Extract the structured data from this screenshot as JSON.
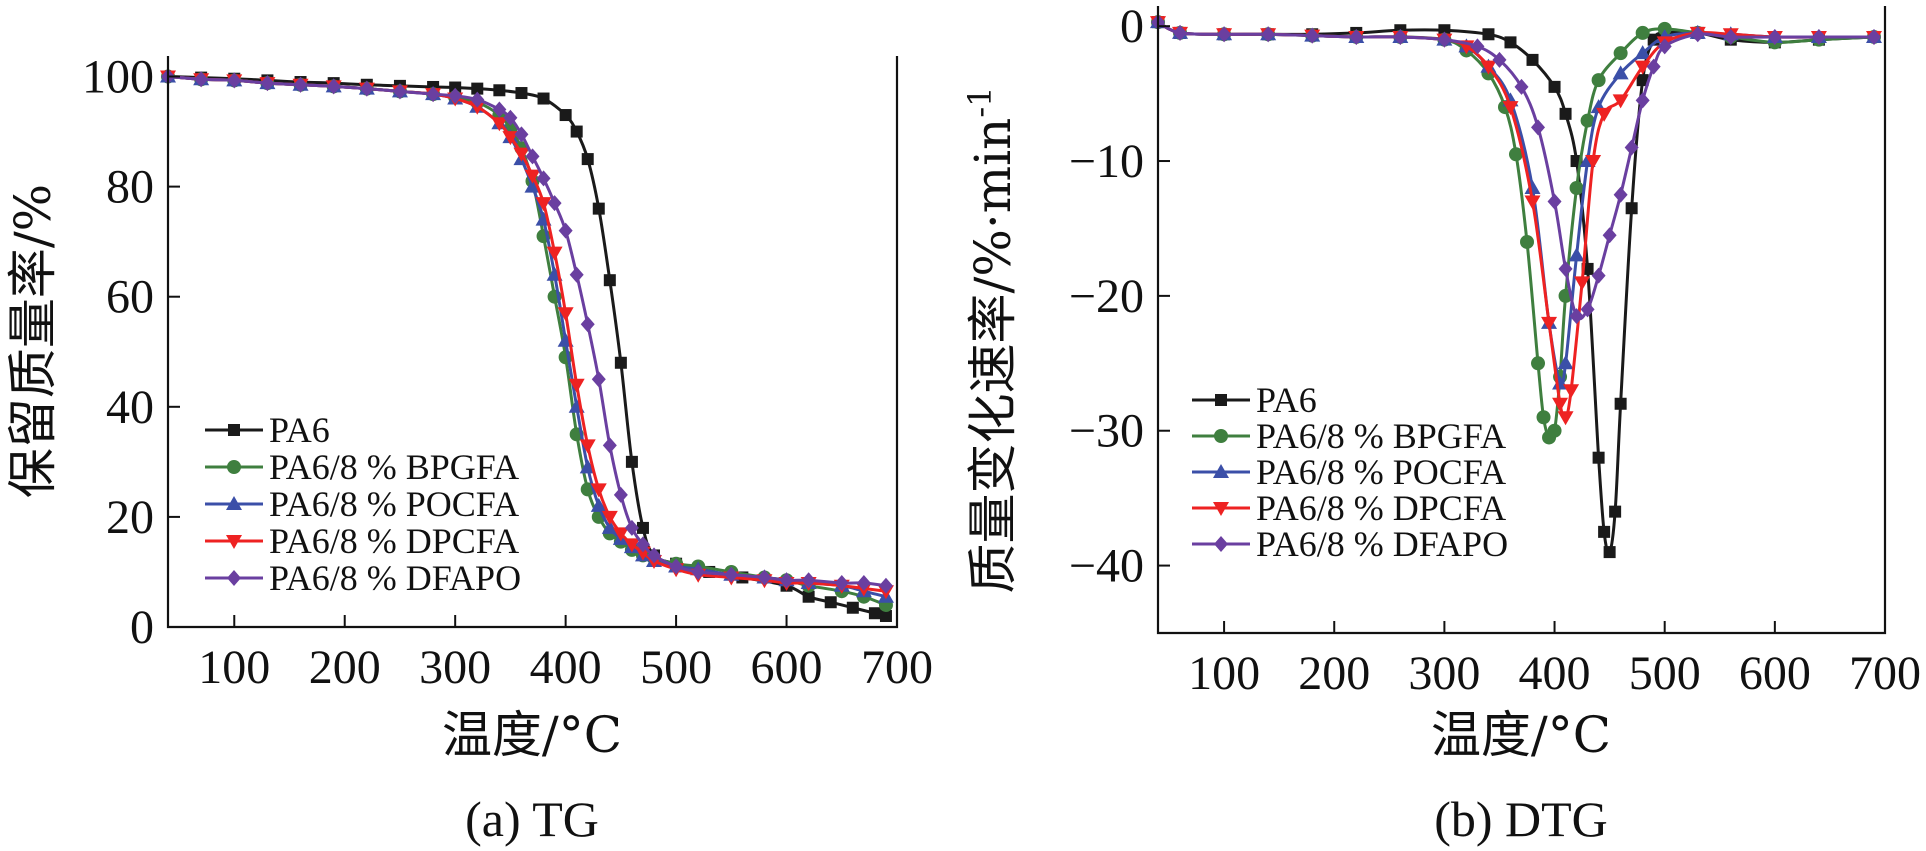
{
  "colors": {
    "PA6": "#1a1a1a",
    "BPGFA": "#3f7f3f",
    "POCFA": "#3b4fa8",
    "DPCFA": "#ee2222",
    "DFAPO": "#6a3fa0"
  },
  "chart_data": [
    {
      "type": "line",
      "caption": "(a) TG",
      "xlabel": "温度/°C",
      "ylabel": "保留质量率/%",
      "xlim": [
        40,
        700
      ],
      "ylim": [
        0,
        103
      ],
      "xticks": [
        100,
        200,
        300,
        400,
        500,
        600,
        700
      ],
      "yticks": [
        0,
        20,
        40,
        60,
        80,
        100
      ],
      "legend_position": "lower-left",
      "grid": false,
      "series": [
        {
          "name": "PA6",
          "key": "PA6",
          "marker": "square",
          "x": [
            40,
            70,
            100,
            130,
            160,
            190,
            220,
            250,
            280,
            300,
            320,
            340,
            360,
            380,
            400,
            410,
            420,
            430,
            440,
            450,
            460,
            470,
            480,
            500,
            530,
            560,
            600,
            620,
            640,
            660,
            680,
            690
          ],
          "y": [
            100,
            99.8,
            99.6,
            99.3,
            99,
            98.8,
            98.5,
            98.3,
            98.1,
            98,
            97.8,
            97.5,
            97,
            96,
            93,
            90,
            85,
            76,
            63,
            48,
            30,
            18,
            13,
            11.5,
            10,
            9,
            7.5,
            5.5,
            4.5,
            3.5,
            2.5,
            2
          ]
        },
        {
          "name": "PA6/8 % BPGFA",
          "key": "BPGFA",
          "marker": "circle",
          "x": [
            40,
            70,
            100,
            130,
            160,
            190,
            220,
            250,
            280,
            300,
            320,
            340,
            350,
            360,
            370,
            380,
            390,
            400,
            410,
            420,
            430,
            440,
            450,
            460,
            470,
            480,
            500,
            520,
            550,
            580,
            600,
            620,
            650,
            670,
            690
          ],
          "y": [
            100,
            99.5,
            99.3,
            98.8,
            98.5,
            98.2,
            97.8,
            97.3,
            96.8,
            96.2,
            95.3,
            93,
            90.5,
            87,
            81,
            71,
            60,
            49,
            35,
            25,
            20,
            17,
            15.5,
            14,
            13,
            12.5,
            11.5,
            11,
            10,
            9,
            8.5,
            7.5,
            6.5,
            5.5,
            4
          ]
        },
        {
          "name": "PA6/8 % POCFA",
          "key": "POCFA",
          "marker": "triangle-up",
          "x": [
            40,
            70,
            100,
            130,
            160,
            190,
            220,
            250,
            280,
            300,
            320,
            340,
            350,
            360,
            370,
            380,
            390,
            400,
            410,
            420,
            430,
            440,
            450,
            460,
            470,
            480,
            500,
            520,
            550,
            580,
            600,
            620,
            650,
            670,
            690
          ],
          "y": [
            100,
            99.5,
            99.3,
            98.8,
            98.5,
            98.2,
            97.8,
            97.3,
            96.8,
            96,
            94.5,
            91.5,
            89,
            85,
            80,
            74,
            64,
            52,
            40,
            29,
            22,
            18,
            16,
            14.5,
            13,
            12,
            11,
            10.5,
            9.5,
            9,
            8.5,
            8,
            7.5,
            6.5,
            5.5
          ]
        },
        {
          "name": "PA6/8 % DPCFA",
          "key": "DPCFA",
          "marker": "triangle-down",
          "x": [
            40,
            70,
            100,
            130,
            160,
            190,
            220,
            250,
            280,
            300,
            320,
            340,
            350,
            360,
            370,
            380,
            390,
            400,
            410,
            420,
            430,
            440,
            450,
            460,
            470,
            480,
            500,
            520,
            550,
            580,
            600,
            620,
            650,
            670,
            690
          ],
          "y": [
            100,
            99.5,
            99.3,
            98.8,
            98.5,
            98.2,
            97.8,
            97.3,
            96.8,
            96,
            94.5,
            91.5,
            89,
            86,
            82,
            77,
            68,
            57,
            44,
            33,
            25,
            20,
            17,
            15,
            13.5,
            12,
            10.5,
            9.5,
            9,
            8.5,
            8,
            8,
            7.5,
            7,
            6.5
          ]
        },
        {
          "name": "PA6/8 % DFAPO",
          "key": "DFAPO",
          "marker": "diamond",
          "x": [
            40,
            70,
            100,
            130,
            160,
            190,
            220,
            250,
            280,
            300,
            320,
            340,
            350,
            360,
            370,
            380,
            390,
            400,
            410,
            420,
            430,
            440,
            450,
            460,
            470,
            480,
            500,
            520,
            550,
            580,
            600,
            620,
            650,
            670,
            690
          ],
          "y": [
            100,
            99.5,
            99.3,
            98.8,
            98.5,
            98.2,
            97.8,
            97.3,
            96.8,
            96.5,
            95.8,
            94,
            92.5,
            89.5,
            85.5,
            81.5,
            77,
            72,
            64,
            55,
            45,
            33,
            24,
            18,
            15,
            13,
            11,
            10,
            9.5,
            9,
            8.5,
            8.5,
            8,
            8,
            7.5
          ]
        }
      ]
    },
    {
      "type": "line",
      "caption": "(b) DTG",
      "xlabel": "温度/°C",
      "ylabel": "质量变化速率/%·min",
      "ylabel_superscript": "-1",
      "xlim": [
        40,
        700
      ],
      "ylim": [
        -45,
        1.2
      ],
      "xticks": [
        100,
        200,
        300,
        400,
        500,
        600,
        700
      ],
      "yticks": [
        0,
        -10,
        -20,
        -30,
        -40
      ],
      "ytick_labels": [
        "0",
        "−10",
        "−20",
        "−30",
        "−40"
      ],
      "legend_position": "lower-left",
      "grid": false,
      "series": [
        {
          "name": "PA6",
          "key": "PA6",
          "marker": "square",
          "x": [
            40,
            60,
            100,
            140,
            180,
            220,
            260,
            300,
            340,
            360,
            380,
            400,
            410,
            420,
            430,
            440,
            445,
            450,
            455,
            460,
            470,
            480,
            490,
            500,
            530,
            560,
            600,
            640,
            690
          ],
          "y": [
            0.3,
            -0.5,
            -0.6,
            -0.6,
            -0.6,
            -0.5,
            -0.3,
            -0.3,
            -0.6,
            -1.2,
            -2.5,
            -4.5,
            -6.5,
            -10,
            -18,
            -32,
            -37.5,
            -39,
            -36,
            -28,
            -13.5,
            -4,
            -1,
            -0.5,
            -0.5,
            -1,
            -1.2,
            -1,
            -0.8
          ]
        },
        {
          "name": "PA6/8 % BPGFA",
          "key": "BPGFA",
          "marker": "circle",
          "x": [
            40,
            60,
            100,
            140,
            180,
            220,
            260,
            300,
            320,
            340,
            355,
            365,
            375,
            385,
            390,
            395,
            400,
            405,
            410,
            420,
            430,
            440,
            460,
            480,
            500,
            530,
            560,
            600,
            640,
            690
          ],
          "y": [
            0.3,
            -0.5,
            -0.6,
            -0.6,
            -0.7,
            -0.8,
            -0.8,
            -1,
            -1.8,
            -3.5,
            -6,
            -9.5,
            -16,
            -25,
            -29,
            -30.5,
            -30,
            -26,
            -20,
            -12,
            -7,
            -4,
            -2,
            -0.5,
            -0.2,
            -0.5,
            -0.8,
            -1.2,
            -1,
            -0.8
          ]
        },
        {
          "name": "PA6/8 % POCFA",
          "key": "POCFA",
          "marker": "triangle-up",
          "x": [
            40,
            60,
            100,
            140,
            180,
            220,
            260,
            300,
            320,
            340,
            360,
            380,
            395,
            405,
            410,
            420,
            430,
            440,
            460,
            480,
            500,
            530,
            560,
            600,
            640,
            690
          ],
          "y": [
            0.3,
            -0.5,
            -0.6,
            -0.6,
            -0.7,
            -0.8,
            -0.8,
            -1,
            -1.5,
            -3,
            -5.5,
            -12,
            -22,
            -26.5,
            -25,
            -17,
            -10,
            -6,
            -3.5,
            -2,
            -0.8,
            -0.5,
            -0.6,
            -0.8,
            -0.8,
            -0.8
          ]
        },
        {
          "name": "PA6/8 % DPCFA",
          "key": "DPCFA",
          "marker": "triangle-down",
          "x": [
            40,
            60,
            100,
            140,
            180,
            220,
            260,
            300,
            320,
            340,
            360,
            380,
            395,
            405,
            410,
            415,
            425,
            435,
            445,
            460,
            480,
            500,
            530,
            560,
            600,
            640,
            690
          ],
          "y": [
            0.3,
            -0.5,
            -0.6,
            -0.6,
            -0.7,
            -0.8,
            -0.8,
            -1,
            -1.5,
            -3,
            -6,
            -13,
            -22,
            -28,
            -29,
            -27,
            -19,
            -10,
            -6.5,
            -5.5,
            -3,
            -1.2,
            -0.5,
            -0.6,
            -0.8,
            -0.8,
            -0.8
          ]
        },
        {
          "name": "PA6/8 % DFAPO",
          "key": "DFAPO",
          "marker": "diamond",
          "x": [
            40,
            60,
            100,
            140,
            180,
            220,
            260,
            300,
            330,
            350,
            370,
            385,
            400,
            410,
            420,
            430,
            440,
            450,
            460,
            470,
            480,
            490,
            500,
            530,
            560,
            600,
            640,
            690
          ],
          "y": [
            0.3,
            -0.5,
            -0.6,
            -0.6,
            -0.7,
            -0.8,
            -0.8,
            -1,
            -1.5,
            -2.5,
            -4.5,
            -7.5,
            -13,
            -18,
            -21.5,
            -21,
            -18.5,
            -15.5,
            -12.5,
            -9,
            -5.5,
            -3,
            -1.5,
            -0.6,
            -0.8,
            -0.8,
            -0.8,
            -0.8
          ]
        }
      ]
    }
  ]
}
